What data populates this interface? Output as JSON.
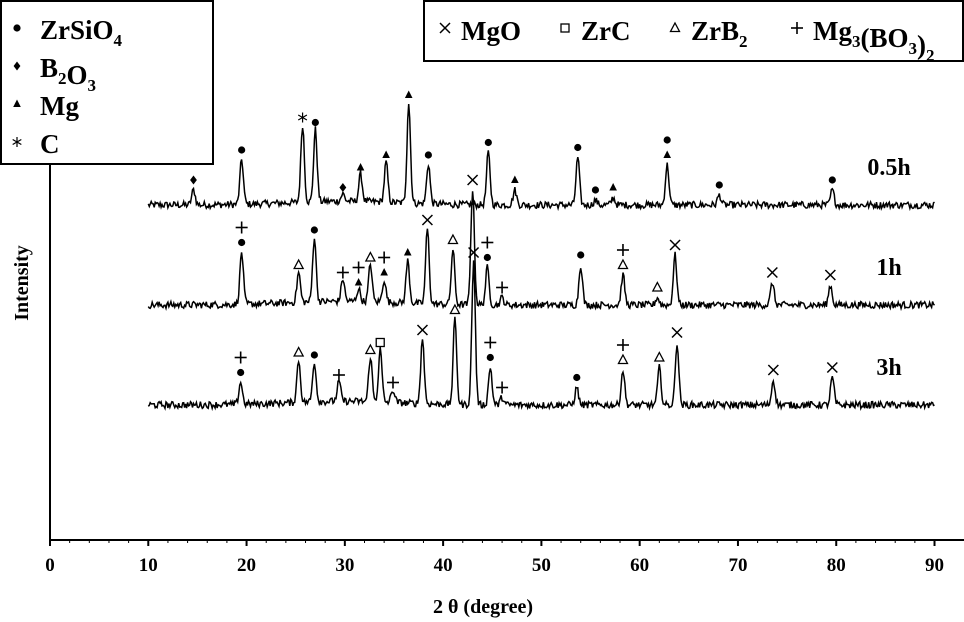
{
  "chart_data": {
    "type": "line",
    "title": "",
    "xlabel": "2 θ (degree)",
    "ylabel": "Intensity",
    "xlim": [
      0,
      93
    ],
    "xticks": [
      0,
      10,
      20,
      30,
      40,
      50,
      60,
      70,
      80,
      90
    ],
    "grid": false,
    "legends": [
      {
        "placement": "top-left",
        "entries": [
          {
            "symbol": "circle",
            "parts": [
              [
                "ZrSiO",
                0
              ],
              [
                "4",
                1
              ]
            ]
          },
          {
            "symbol": "diamond",
            "parts": [
              [
                "B",
                0
              ],
              [
                "2",
                1
              ],
              [
                "O",
                0
              ],
              [
                "3",
                1
              ]
            ]
          },
          {
            "symbol": "triangle",
            "parts": [
              [
                "Mg",
                0
              ]
            ]
          },
          {
            "symbol": "star",
            "parts": [
              [
                "C",
                0
              ]
            ]
          }
        ]
      },
      {
        "placement": "top-right",
        "entries": [
          {
            "symbol": "cross",
            "parts": [
              [
                "MgO",
                0
              ]
            ]
          },
          {
            "symbol": "square",
            "parts": [
              [
                "ZrC",
                0
              ]
            ]
          },
          {
            "symbol": "open-triangle",
            "parts": [
              [
                "ZrB",
                0
              ],
              [
                "2",
                1
              ]
            ]
          },
          {
            "symbol": "plus",
            "parts": [
              [
                "Mg",
                0
              ],
              [
                "3",
                1
              ],
              [
                "(BO",
                0
              ],
              [
                "3",
                1
              ],
              [
                ")",
                0
              ],
              [
                "2",
                1
              ]
            ]
          }
        ]
      }
    ],
    "series": [
      {
        "name": "0.5h",
        "baseline": 0.5,
        "peaks": [
          {
            "x": 14.6,
            "h": 0.06,
            "marks": [
              "diamond"
            ]
          },
          {
            "x": 19.5,
            "h": 0.18,
            "marks": [
              "circle"
            ]
          },
          {
            "x": 25.7,
            "h": 0.31,
            "marks": [
              "star"
            ]
          },
          {
            "x": 27.0,
            "h": 0.29,
            "marks": [
              "circle"
            ]
          },
          {
            "x": 29.8,
            "h": 0.03,
            "marks": [
              "diamond"
            ]
          },
          {
            "x": 31.6,
            "h": 0.11,
            "marks": [
              "triangle"
            ]
          },
          {
            "x": 34.2,
            "h": 0.16,
            "marks": [
              "triangle"
            ]
          },
          {
            "x": 36.5,
            "h": 0.4,
            "marks": [
              "triangle"
            ]
          },
          {
            "x": 38.5,
            "h": 0.16,
            "marks": [
              "circle"
            ]
          },
          {
            "x": 44.6,
            "h": 0.21,
            "marks": [
              "circle"
            ]
          },
          {
            "x": 47.3,
            "h": 0.06,
            "marks": [
              "triangle"
            ]
          },
          {
            "x": 53.7,
            "h": 0.19,
            "marks": [
              "circle"
            ]
          },
          {
            "x": 55.5,
            "h": 0.02,
            "marks": [
              "circle"
            ]
          },
          {
            "x": 57.3,
            "h": 0.03,
            "marks": [
              "triangle"
            ]
          },
          {
            "x": 62.8,
            "h": 0.16,
            "marks": [
              "triangle",
              "circle"
            ]
          },
          {
            "x": 68.1,
            "h": 0.04,
            "marks": [
              "circle"
            ]
          },
          {
            "x": 79.6,
            "h": 0.06,
            "marks": [
              "circle"
            ]
          }
        ]
      },
      {
        "name": "1h",
        "baseline": 0.0,
        "peaks": [
          {
            "x": 19.5,
            "h": 0.21,
            "marks": [
              "circle",
              "plus"
            ]
          },
          {
            "x": 25.3,
            "h": 0.12,
            "marks": [
              "open-triangle"
            ]
          },
          {
            "x": 26.9,
            "h": 0.26,
            "marks": [
              "circle"
            ]
          },
          {
            "x": 29.8,
            "h": 0.09,
            "marks": [
              "plus"
            ]
          },
          {
            "x": 31.4,
            "h": 0.05,
            "marks": [
              "triangle",
              "plus"
            ]
          },
          {
            "x": 32.6,
            "h": 0.15,
            "marks": [
              "open-triangle"
            ]
          },
          {
            "x": 34.0,
            "h": 0.09,
            "marks": [
              "triangle",
              "plus"
            ]
          },
          {
            "x": 36.4,
            "h": 0.17,
            "marks": [
              "triangle"
            ]
          },
          {
            "x": 38.4,
            "h": 0.3,
            "marks": [
              "cross"
            ]
          },
          {
            "x": 41.0,
            "h": 0.22,
            "marks": [
              "open-triangle"
            ]
          },
          {
            "x": 43.0,
            "h": 0.46,
            "marks": [
              "cross"
            ]
          },
          {
            "x": 44.5,
            "h": 0.15,
            "marks": [
              "circle",
              "plus"
            ]
          },
          {
            "x": 46.0,
            "h": 0.03,
            "marks": [
              "plus"
            ]
          },
          {
            "x": 54.0,
            "h": 0.16,
            "marks": [
              "circle"
            ]
          },
          {
            "x": 58.3,
            "h": 0.12,
            "marks": [
              "open-triangle",
              "plus"
            ]
          },
          {
            "x": 61.8,
            "h": 0.03,
            "marks": [
              "open-triangle"
            ]
          },
          {
            "x": 63.6,
            "h": 0.2,
            "marks": [
              "cross"
            ]
          },
          {
            "x": 73.5,
            "h": 0.09,
            "marks": [
              "cross"
            ]
          },
          {
            "x": 79.4,
            "h": 0.08,
            "marks": [
              "cross"
            ]
          }
        ]
      },
      {
        "name": "3h",
        "baseline": -0.5,
        "peaks": [
          {
            "x": 19.4,
            "h": 0.09,
            "marks": [
              "circle",
              "plus"
            ]
          },
          {
            "x": 25.3,
            "h": 0.17,
            "marks": [
              "open-triangle"
            ]
          },
          {
            "x": 26.9,
            "h": 0.16,
            "marks": [
              "circle"
            ]
          },
          {
            "x": 29.4,
            "h": 0.08,
            "marks": [
              "plus"
            ]
          },
          {
            "x": 32.6,
            "h": 0.18,
            "marks": [
              "open-triangle"
            ]
          },
          {
            "x": 33.6,
            "h": 0.21,
            "marks": [
              "square"
            ]
          },
          {
            "x": 34.9,
            "h": 0.05,
            "marks": [
              "plus"
            ]
          },
          {
            "x": 37.9,
            "h": 0.26,
            "marks": [
              "cross"
            ]
          },
          {
            "x": 41.2,
            "h": 0.34,
            "marks": [
              "open-triangle"
            ]
          },
          {
            "x": 43.1,
            "h": 0.57,
            "marks": [
              "cross"
            ]
          },
          {
            "x": 44.8,
            "h": 0.15,
            "marks": [
              "circle",
              "plus"
            ]
          },
          {
            "x": 46.0,
            "h": 0.03,
            "marks": [
              "plus"
            ]
          },
          {
            "x": 53.6,
            "h": 0.07,
            "marks": [
              "circle"
            ]
          },
          {
            "x": 58.3,
            "h": 0.14,
            "marks": [
              "open-triangle",
              "plus"
            ]
          },
          {
            "x": 62.0,
            "h": 0.15,
            "marks": [
              "open-triangle"
            ]
          },
          {
            "x": 63.8,
            "h": 0.25,
            "marks": [
              "cross"
            ]
          },
          {
            "x": 73.6,
            "h": 0.1,
            "marks": [
              "cross"
            ]
          },
          {
            "x": 79.6,
            "h": 0.11,
            "marks": [
              "cross"
            ]
          }
        ]
      }
    ]
  }
}
